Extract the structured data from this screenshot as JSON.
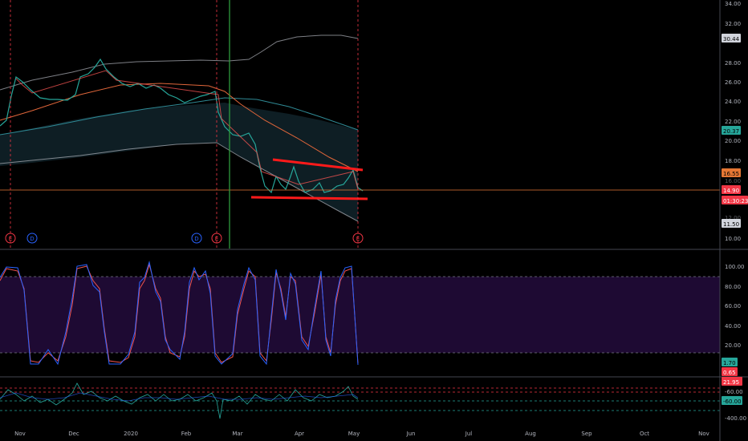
{
  "price_axis": {
    "ticks": [
      "34.00",
      "32.00",
      "28.00",
      "26.00",
      "24.00",
      "22.00",
      "20.00",
      "18.00",
      "10.00"
    ],
    "partial_ticks": [
      "16.00",
      "12.00"
    ],
    "badges": [
      {
        "label": "30.44",
        "color": "#d1d4dc",
        "text_color": "#000000"
      },
      {
        "label": "20.37",
        "color": "#26a69a",
        "text_color": "#000000"
      },
      {
        "label": "16.55",
        "color": "#e57734",
        "text_color": "#000000"
      },
      {
        "label": "14.90",
        "color": "#f23645",
        "text_color": "#ffffff"
      },
      {
        "label": "01:30:23",
        "color": "#f23645",
        "text_color": "#ffffff"
      },
      {
        "label": "11.50",
        "color": "#d1d4dc",
        "text_color": "#000000"
      }
    ]
  },
  "event_markers": [
    {
      "label": "E",
      "color": "#f23645"
    },
    {
      "label": "D",
      "color": "#2962ff"
    },
    {
      "label": "D",
      "color": "#2962ff"
    },
    {
      "label": "E",
      "color": "#f23645"
    },
    {
      "label": "E",
      "color": "#f23645"
    }
  ],
  "stoch_axis": {
    "ticks": [
      "100.00",
      "80.00",
      "60.00",
      "40.00",
      "20.00"
    ],
    "badges": [
      {
        "label": "1.70",
        "color": "#26a69a",
        "text_color": "#000000"
      },
      {
        "label": "0.65",
        "color": "#f23645",
        "text_color": "#ffffff"
      }
    ]
  },
  "third_axis": {
    "ticks": [
      "-60.00",
      "-400.00"
    ],
    "badges": [
      {
        "label": "21.95",
        "color": "#f23645",
        "text_color": "#ffffff"
      },
      {
        "label": "-60.00",
        "color": "#26a69a",
        "text_color": "#000000"
      }
    ]
  },
  "time_axis": [
    "Nov",
    "Dec",
    "2020",
    "Feb",
    "Mar",
    "Apr",
    "May",
    "Jun",
    "Jul",
    "Aug",
    "Sep",
    "Oct",
    "Nov"
  ],
  "colors": {
    "background": "#000000",
    "band_fill": "#0e1e24",
    "upper_band": "#b2b5be",
    "basis_teal": "#2f8a95",
    "orange_ma": "#e0663a",
    "trendline": "#ff1a1a",
    "stoch_bg": "#1e0a33",
    "stoch_k": "#2962ff",
    "stoch_d": "#ef5350"
  }
}
